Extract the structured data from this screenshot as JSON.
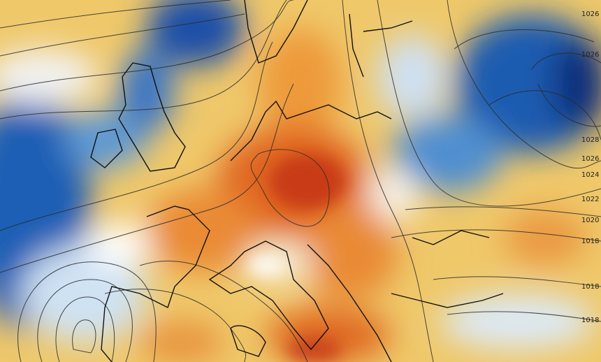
{
  "isobar_labels": [
    "1026",
    "1026",
    "1028",
    "1026",
    "1024",
    "1022",
    "1020",
    "1018",
    "1018",
    "1018"
  ]
}
